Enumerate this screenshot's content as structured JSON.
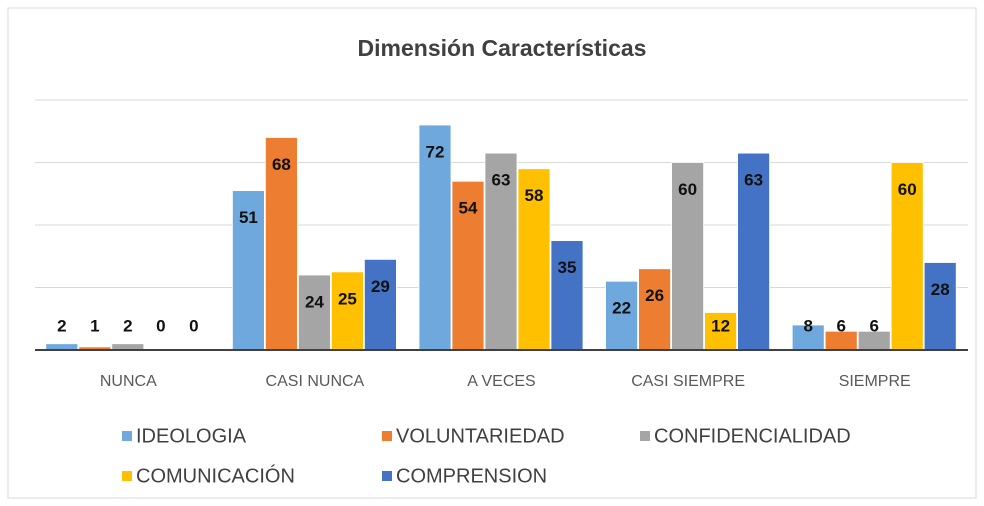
{
  "chart_data": {
    "type": "bar",
    "title": "Dimensión Características",
    "categories": [
      "NUNCA",
      "CASI NUNCA",
      "A VECES",
      "CASI SIEMPRE",
      "SIEMPRE"
    ],
    "series": [
      {
        "name": "IDEOLOGIA",
        "color": "#6fa8dc",
        "values": [
          2,
          51,
          72,
          22,
          8
        ]
      },
      {
        "name": "VOLUNTARIEDAD",
        "color": "#ed7d31",
        "values": [
          1,
          68,
          54,
          26,
          6
        ]
      },
      {
        "name": "CONFIDENCIALIDAD",
        "color": "#a5a5a5",
        "values": [
          2,
          24,
          63,
          60,
          6
        ]
      },
      {
        "name": "COMUNICACIÓN",
        "color": "#ffc000",
        "values": [
          0,
          25,
          58,
          12,
          60
        ]
      },
      {
        "name": "COMPRENSION",
        "color": "#4472c4",
        "values": [
          0,
          29,
          35,
          63,
          28
        ]
      }
    ],
    "ylim": [
      0,
      80
    ],
    "yticks": [
      0,
      20,
      40,
      60,
      80
    ],
    "grid": true
  }
}
